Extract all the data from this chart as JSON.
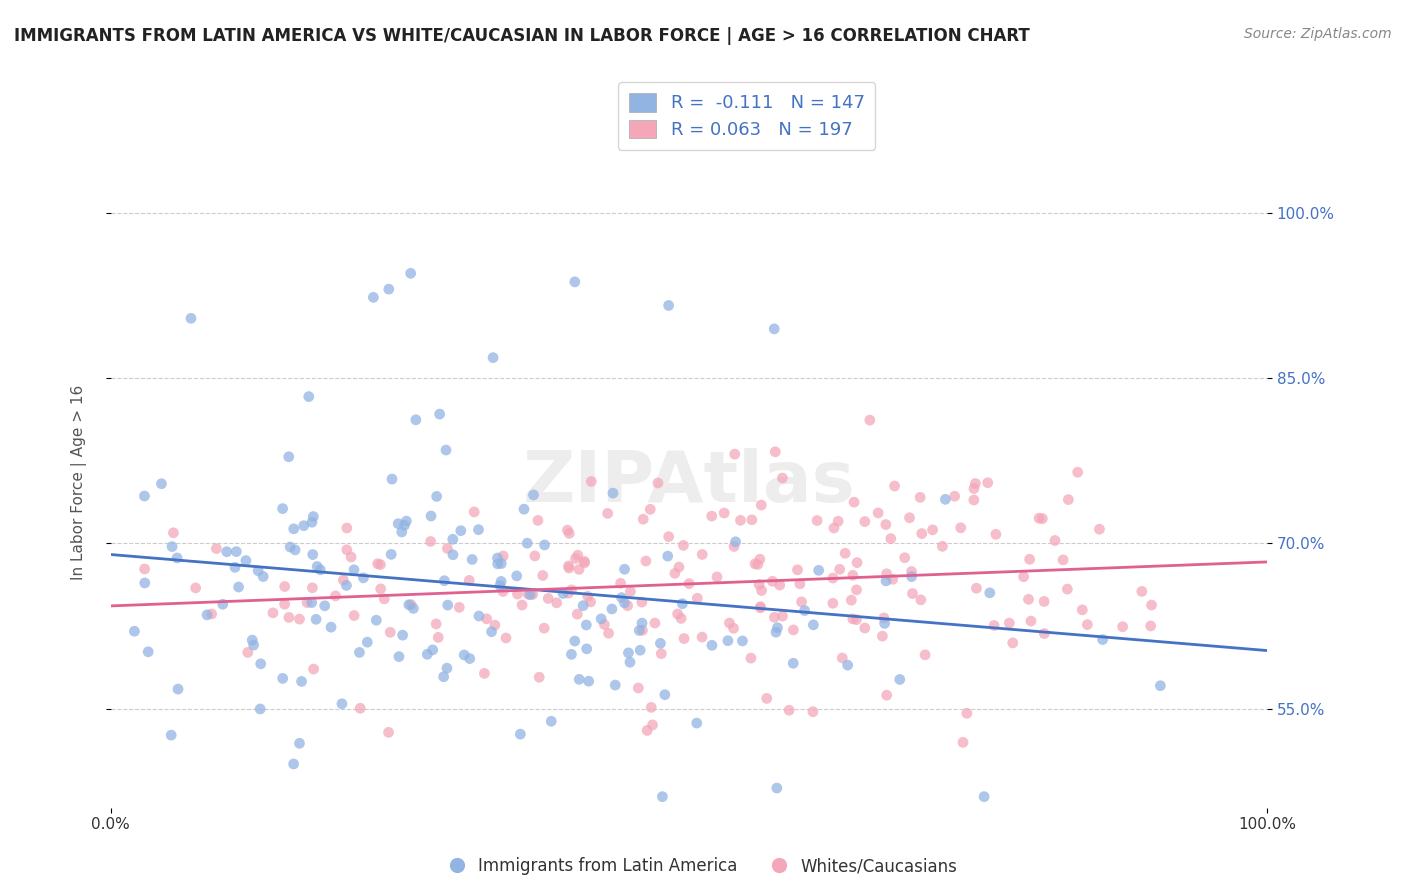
{
  "title": "IMMIGRANTS FROM LATIN AMERICA VS WHITE/CAUCASIAN IN LABOR FORCE | AGE > 16 CORRELATION CHART",
  "source": "Source: ZipAtlas.com",
  "xlabel": "",
  "ylabel": "In Labor Force | Age > 16",
  "xlim": [
    0.0,
    1.0
  ],
  "ylim": [
    0.45,
    1.05
  ],
  "ytick_labels": [
    "55.0%",
    "70.0%",
    "85.0%",
    "100.0%"
  ],
  "ytick_vals": [
    0.55,
    0.7,
    0.85,
    1.0
  ],
  "xtick_labels": [
    "0.0%",
    "100.0%"
  ],
  "xtick_vals": [
    0.0,
    1.0
  ],
  "blue_R": -0.111,
  "blue_N": 147,
  "pink_R": 0.063,
  "pink_N": 197,
  "blue_color": "#92b4e3",
  "pink_color": "#f4a7b9",
  "blue_line_color": "#4472c4",
  "pink_line_color": "#e06090",
  "watermark": "ZIPAtlas",
  "legend_label_blue": "Immigrants from Latin America",
  "legend_label_pink": "Whites/Caucasians",
  "background_color": "#ffffff",
  "grid_color": "#cccccc"
}
